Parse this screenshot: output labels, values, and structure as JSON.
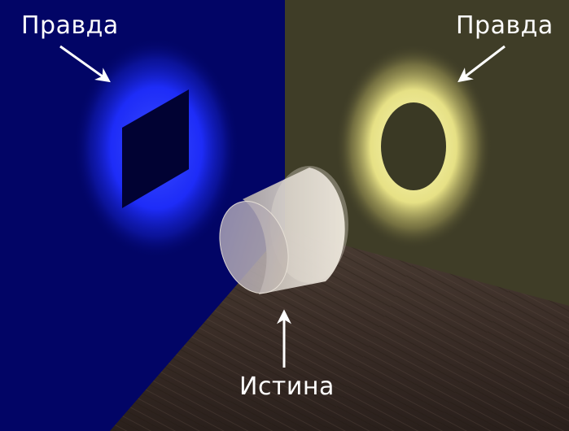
{
  "labels": {
    "top_left": "Правда",
    "top_right": "Правда",
    "bottom": "Истина"
  },
  "colors": {
    "left_wall": "#020566",
    "right_wall": "#3f3d27",
    "blue_glow": "#2236ff",
    "yellow_glow": "#f3f08a",
    "floor": "#3a2e28",
    "cylinder": "#d8cfc4",
    "arrows": "#ffffff"
  },
  "icons": {
    "left_shadow": "square-shadow-icon",
    "right_shadow": "circle-shadow-icon",
    "object": "cylinder-icon"
  }
}
